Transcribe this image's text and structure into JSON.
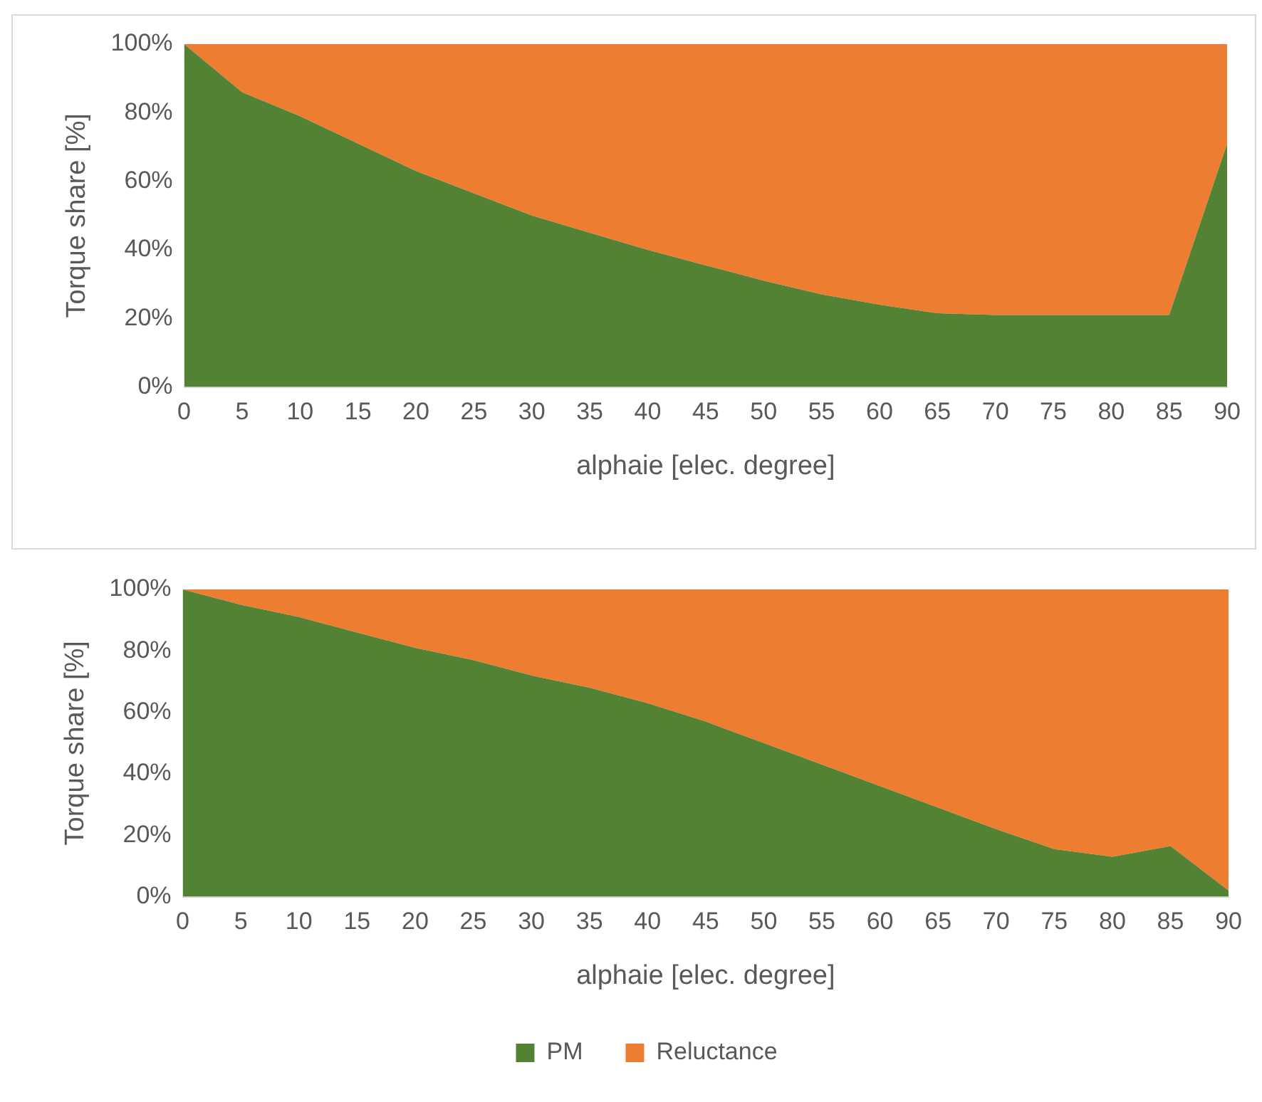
{
  "chart_data": [
    {
      "type": "area",
      "stacked": true,
      "xlabel": "alphaie [elec. degree]",
      "ylabel": "Torque share [%]",
      "categories": [
        "0",
        "5",
        "10",
        "15",
        "20",
        "25",
        "30",
        "35",
        "40",
        "45",
        "50",
        "55",
        "60",
        "65",
        "70",
        "75",
        "80",
        "85",
        "90"
      ],
      "series": [
        {
          "color": "#548235",
          "values": [
            100,
            86,
            79,
            71,
            63,
            56.5,
            50,
            45,
            40,
            35.5,
            31,
            27,
            24,
            21.5,
            21,
            21,
            21,
            21,
            71
          ]
        },
        {
          "color": "#ed7d31",
          "values": [
            0,
            14,
            21,
            29,
            37,
            43.5,
            50,
            55,
            60,
            64.5,
            69,
            73,
            76,
            78.5,
            79,
            79,
            79,
            79,
            29
          ]
        }
      ],
      "ylim": [
        0,
        100
      ],
      "yticks": [
        {
          "value": 0,
          "label": "0%"
        },
        {
          "value": 20,
          "label": "20%"
        },
        {
          "value": 40,
          "label": "40%"
        },
        {
          "value": 60,
          "label": "60%"
        },
        {
          "value": 80,
          "label": "80%"
        },
        {
          "value": 100,
          "label": "100%"
        }
      ],
      "grid": false,
      "legend": false
    },
    {
      "type": "area",
      "stacked": true,
      "xlabel": "alphaie [elec. degree]",
      "ylabel": "Torque share [%]",
      "categories": [
        "0",
        "5",
        "10",
        "15",
        "20",
        "25",
        "30",
        "35",
        "40",
        "45",
        "50",
        "55",
        "60",
        "65",
        "70",
        "75",
        "80",
        "85",
        "90"
      ],
      "series": [
        {
          "name": "PM",
          "color": "#548235",
          "values": [
            100,
            95,
            91,
            86,
            81,
            77,
            72,
            68,
            63,
            57,
            50,
            43,
            36,
            29,
            22,
            15.5,
            13,
            16.5,
            2
          ]
        },
        {
          "name": "Reluctance",
          "color": "#ed7d31",
          "values": [
            0,
            5,
            9,
            14,
            19,
            23,
            28,
            32,
            37,
            43,
            50,
            57,
            64,
            71,
            78,
            84.5,
            87,
            83.5,
            98
          ]
        }
      ],
      "ylim": [
        0,
        100
      ],
      "yticks": [
        {
          "value": 0,
          "label": "0%"
        },
        {
          "value": 20,
          "label": "20%"
        },
        {
          "value": 40,
          "label": "40%"
        },
        {
          "value": 60,
          "label": "60%"
        },
        {
          "value": 80,
          "label": "80%"
        },
        {
          "value": 100,
          "label": "100%"
        }
      ],
      "grid": false,
      "legend": "bottom"
    }
  ]
}
